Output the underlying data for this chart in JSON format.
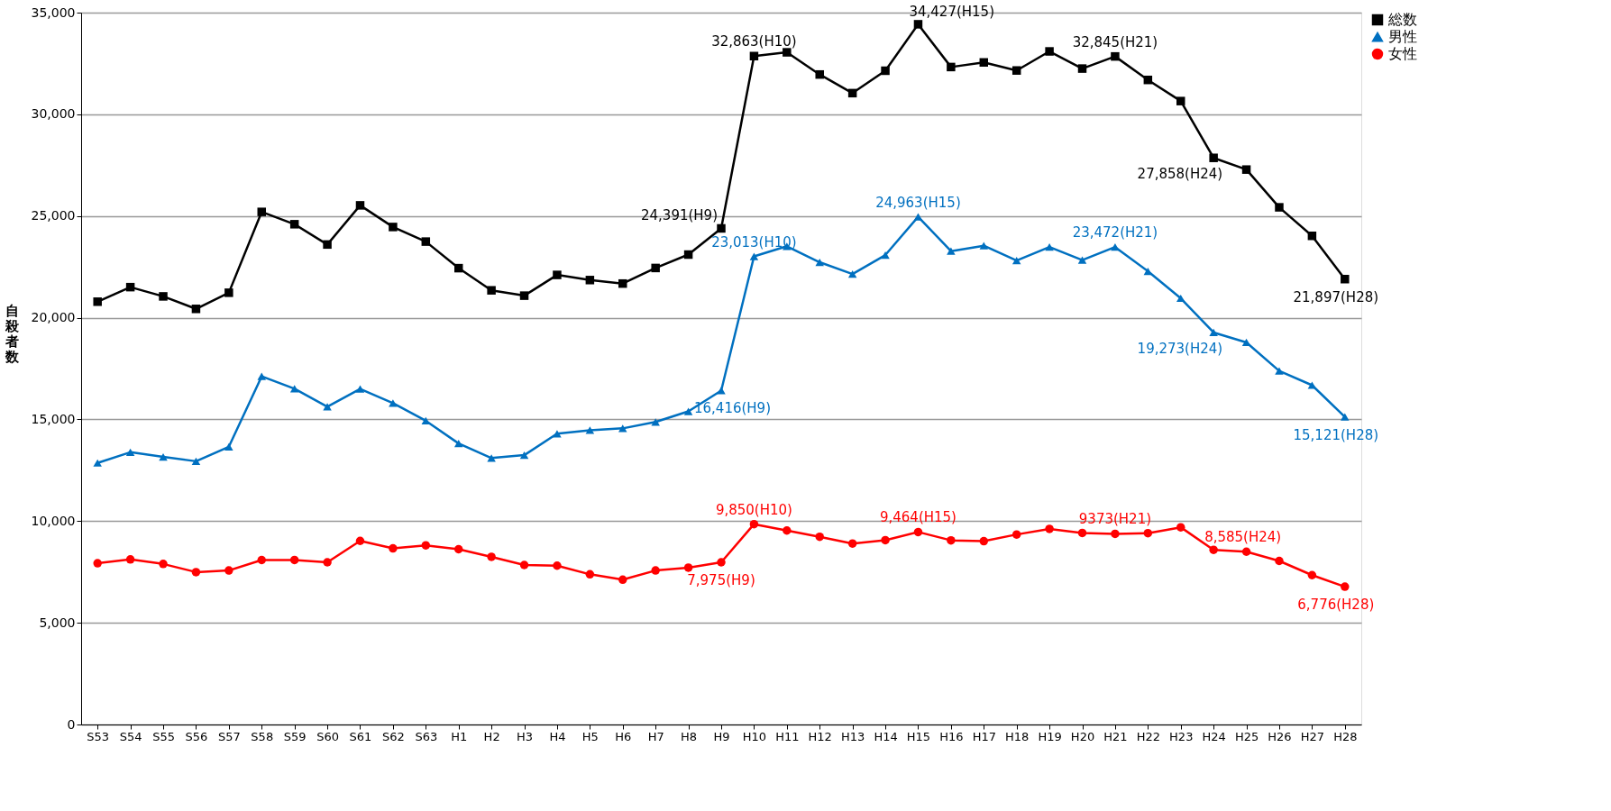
{
  "chart_data": {
    "type": "line",
    "ylabel": "自殺者数",
    "categories": [
      "S53",
      "S54",
      "S55",
      "S56",
      "S57",
      "S58",
      "S59",
      "S60",
      "S61",
      "S62",
      "S63",
      "H1",
      "H2",
      "H3",
      "H4",
      "H5",
      "H6",
      "H7",
      "H8",
      "H9",
      "H10",
      "H11",
      "H12",
      "H13",
      "H14",
      "H15",
      "H16",
      "H17",
      "H18",
      "H19",
      "H20",
      "H21",
      "H22",
      "H23",
      "H24",
      "H25",
      "H26",
      "H27",
      "H28"
    ],
    "series": [
      {
        "name": "総数",
        "color": "#000000",
        "marker": "square",
        "values": [
          20788,
          21503,
          21048,
          20434,
          21228,
          25202,
          24596,
          23599,
          25524,
          24460,
          23742,
          22436,
          21346,
          21084,
          22104,
          21851,
          21679,
          22445,
          23104,
          24391,
          32863,
          33048,
          31957,
          31042,
          32143,
          34427,
          32325,
          32552,
          32155,
          33093,
          32249,
          32845,
          31690,
          30651,
          27858,
          27283,
          25427,
          24025,
          21897
        ]
      },
      {
        "name": "男性",
        "color": "#0070c0",
        "marker": "triangle",
        "values": [
          12859,
          13386,
          13155,
          12942,
          13654,
          17116,
          16508,
          15624,
          16497,
          15802,
          14934,
          13818,
          13102,
          13242,
          14296,
          14468,
          14560,
          14874,
          15393,
          16416,
          23013,
          23512,
          22727,
          22144,
          23080,
          24963,
          23272,
          23540,
          22813,
          23478,
          22831,
          23472,
          22283,
          20955,
          19273,
          18787,
          17386,
          16681,
          15121
        ]
      },
      {
        "name": "女性",
        "color": "#ff0000",
        "marker": "circle",
        "values": [
          7929,
          8117,
          7893,
          7492,
          7574,
          8086,
          8088,
          7975,
          9027,
          8658,
          8808,
          8618,
          8244,
          7842,
          7808,
          7383,
          7119,
          7571,
          7711,
          7975,
          9850,
          9536,
          9230,
          8898,
          9063,
          9464,
          9053,
          9012,
          9342,
          9615,
          9418,
          9373,
          9407,
          9696,
          8585,
          8496,
          8041,
          7344,
          6776
        ]
      }
    ],
    "ylim": [
      0,
      35000
    ],
    "yticks": [
      0,
      {
        "value": 5000,
        "label": "5,000"
      },
      {
        "value": 10000,
        "label": "10,000"
      },
      {
        "value": 15000,
        "label": "15,000"
      },
      {
        "value": 20000,
        "label": "20,000"
      },
      {
        "value": 25000,
        "label": "25,000"
      },
      {
        "value": 30000,
        "label": "30,000"
      },
      {
        "value": 35000,
        "label": "35,000"
      }
    ],
    "grid": "y",
    "legend": "right",
    "line_style": "solid",
    "annotations": [
      {
        "text": "24,391(H9)",
        "x": "H9",
        "y": 24391
      },
      {
        "text": "32,863(H10)",
        "x": "H10",
        "y": 32863
      },
      {
        "text": "34,427(H15)",
        "x": "H15",
        "y": 34427
      },
      {
        "text": "32,845(H21)",
        "x": "H21",
        "y": 32845
      },
      {
        "text": "27,858(H24)",
        "x": "H24",
        "y": 27858
      },
      {
        "text": "21,897(H28)",
        "x": "H28",
        "y": 21897
      },
      {
        "text": "16,416(H9)",
        "x": "H9",
        "y": 16416
      },
      {
        "text": "23,013(H10)",
        "x": "H10",
        "y": 23013
      },
      {
        "text": "24,963(H15)",
        "x": "H15",
        "y": 24963
      },
      {
        "text": "23,472(H21)",
        "x": "H21",
        "y": 23472
      },
      {
        "text": "19,273(H24)",
        "x": "H24",
        "y": 19273
      },
      {
        "text": "15,121(H28)",
        "x": "H28",
        "y": 15121
      },
      {
        "text": "7,975(H9)",
        "x": "H9",
        "y": 7975
      },
      {
        "text": "9,850(H10)",
        "x": "H10",
        "y": 9850
      },
      {
        "text": "9,464(H15)",
        "x": "H15",
        "y": 9464
      },
      {
        "text": "9373(H21)",
        "x": "H21",
        "y": 9373
      },
      {
        "text": "8,585(H24)",
        "x": "H24",
        "y": 8585
      },
      {
        "text": "6,776(H28)",
        "x": "H28",
        "y": 6776
      }
    ]
  }
}
